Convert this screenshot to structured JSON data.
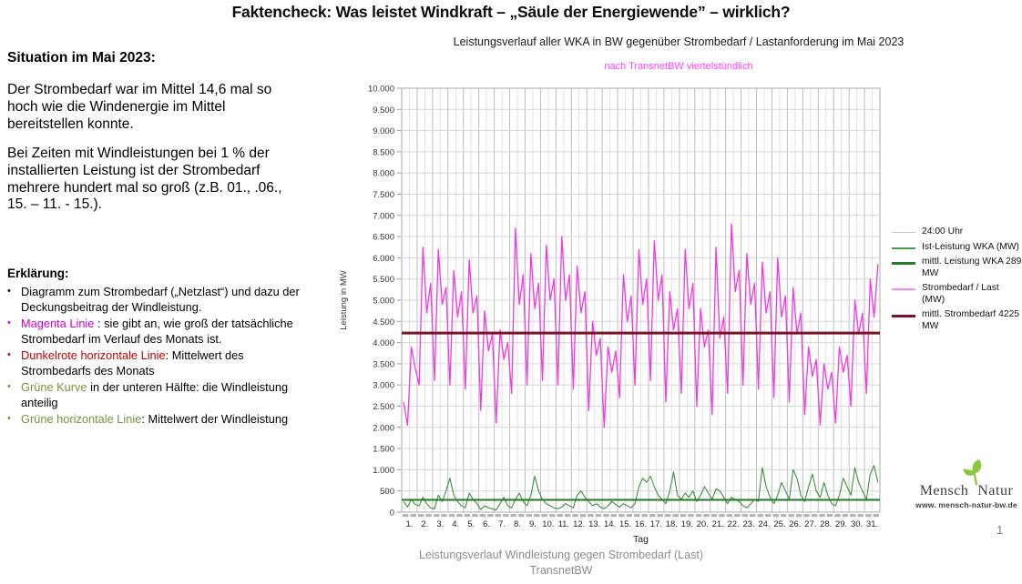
{
  "slide": {
    "title": "Faktencheck: Was leistet Windkraft – „Säule der Energiewende” –  wirklich?",
    "page_number": "1"
  },
  "left_panel": {
    "heading": "Situation im Mai 2023:",
    "paragraph1": "Der Strombedarf war im Mittel 14,6 mal so hoch wie die Windenergie im Mittel bereitstellen konnte.",
    "paragraph2": "Bei Zeiten mit Windleistungen bei 1 % der installierten Leistung ist der Strombedarf mehrere hundert mal so groß (z.B.  01., .06., 15. – 11. - 15.).",
    "explain_heading": "Erklärung:",
    "bullets": [
      {
        "lead": "",
        "lead_color": "#000000",
        "text": "Diagramm zum Strombedarf („Netzlast“) und dazu der Deckungsbeitrag der Windleistung."
      },
      {
        "lead": "Magenta Linie",
        "lead_color": "#cc00cc",
        "text": " : sie gibt an, wie groß der tatsächliche Strombedarf im Verlauf des Monats ist."
      },
      {
        "lead": "Dunkelrote horizontale Linie",
        "lead_color": "#c00000",
        "text": ": Mittelwert des Strombedarfs des Monats"
      },
      {
        "lead": "Grüne Kurve",
        "lead_color": "#77933c",
        "text": " in der unteren Hälfte: die Windleistung anteilig"
      },
      {
        "lead": "Grüne horizontale Linie",
        "lead_color": "#77933c",
        "text": ": Mittelwert der Windleistung"
      }
    ]
  },
  "chart": {
    "title": "Leistungsverlauf aller WKA in BW gegenüber  Strombedarf / Lastanforderung im Mai 2023",
    "subtitle": "nach TransnetBW viertelstündlich",
    "subtitle_color": "#ff42ff",
    "legend": [
      {
        "label": "24:00 Uhr",
        "color": "#c8c8c8",
        "weight": 1
      },
      {
        "label": "Ist-Leistung WKA (MW)",
        "color": "#4a9e4a",
        "weight": 2
      },
      {
        "label": "mittl. Leistung WKA 289 MW",
        "color": "#1e7d1e",
        "weight": 3
      },
      {
        "label": "Strombedarf / Last (MW)",
        "color": "#ff85f3",
        "weight": 2
      },
      {
        "label": "mittl. Strombedarf 4225 MW",
        "color": "#7a1226",
        "weight": 3
      }
    ]
  },
  "chart_data": {
    "type": "line",
    "title": "Leistungsverlauf aller WKA in BW gegenüber  Strombedarf / Lastanforderung im Mai 2023",
    "subtitle": "nach TransnetBW viertelstündlich",
    "xlabel": "Tag",
    "ylabel": "Leistung in MW",
    "ylim": [
      0,
      10000
    ],
    "ytick_step": 500,
    "ytick_labels": [
      "0",
      "500",
      "1.000",
      "1.500",
      "2.000",
      "2.500",
      "3.000",
      "3.500",
      "4.000",
      "4.500",
      "5.000",
      "5.500",
      "6.000",
      "6.500",
      "7.000",
      "7.500",
      "8.000",
      "8.500",
      "9.000",
      "9.500",
      "10.000"
    ],
    "days": 31,
    "samples_per_day": 4,
    "xticks": [
      "1.",
      "2.",
      "3.",
      "4.",
      "5.",
      "6.",
      "7.",
      "8.",
      "9.",
      "10.",
      "11.",
      "12.",
      "13.",
      "14.",
      "15.",
      "16.",
      "17.",
      "18.",
      "19.",
      "20.",
      "21.",
      "22.",
      "23.",
      "24.",
      "25.",
      "26.",
      "27.",
      "28.",
      "29.",
      "30.",
      "31."
    ],
    "grid": true,
    "legend_position": "right",
    "series": [
      {
        "name": "Strombedarf / Last (MW)",
        "color": "#ee3ae2",
        "width": 1.3,
        "values": [
          2600,
          2050,
          3900,
          3400,
          3000,
          6250,
          4700,
          5400,
          3100,
          6200,
          4900,
          5300,
          3000,
          5700,
          4600,
          5200,
          2900,
          5950,
          4700,
          5100,
          2400,
          4750,
          3800,
          4200,
          2100,
          4300,
          3600,
          4000,
          2800,
          6700,
          4900,
          5600,
          3000,
          6100,
          4800,
          5400,
          3100,
          6300,
          5000,
          5500,
          3000,
          6500,
          5000,
          5600,
          2900,
          5800,
          4700,
          5200,
          2400,
          4500,
          3700,
          4100,
          2000,
          3900,
          3300,
          3800,
          2700,
          5600,
          4500,
          5100,
          3000,
          6200,
          4900,
          5500,
          3100,
          6400,
          5000,
          5600,
          2600,
          5200,
          4300,
          4800,
          2800,
          6200,
          4800,
          5400,
          2500,
          4800,
          3900,
          4300,
          2300,
          6250,
          4100,
          4600,
          2800,
          6800,
          5200,
          5700,
          3000,
          6100,
          4900,
          5400,
          2900,
          5900,
          4700,
          5200,
          2700,
          6000,
          4600,
          5100,
          2600,
          5300,
          4200,
          4700,
          2300,
          3900,
          3200,
          3600,
          2050,
          3500,
          2900,
          3300,
          2100,
          3900,
          3300,
          3700,
          2500,
          5000,
          4200,
          4700,
          2800,
          5500,
          4600,
          5850
        ]
      },
      {
        "name": "Ist-Leistung WKA (MW)",
        "color": "#3f8f3f",
        "width": 1.1,
        "values": [
          250,
          120,
          300,
          180,
          150,
          350,
          200,
          100,
          80,
          400,
          250,
          500,
          800,
          400,
          250,
          150,
          100,
          450,
          300,
          200,
          60,
          150,
          100,
          80,
          50,
          200,
          350,
          150,
          100,
          300,
          450,
          250,
          150,
          400,
          850,
          500,
          300,
          200,
          150,
          100,
          80,
          120,
          200,
          150,
          100,
          400,
          500,
          350,
          250,
          150,
          200,
          120,
          80,
          150,
          250,
          180,
          120,
          200,
          150,
          100,
          200,
          600,
          800,
          700,
          850,
          600,
          400,
          300,
          200,
          500,
          950,
          400,
          300,
          450,
          350,
          500,
          250,
          400,
          600,
          450,
          300,
          550,
          500,
          350,
          200,
          350,
          300,
          250,
          150,
          100,
          200,
          300,
          250,
          1050,
          600,
          350,
          200,
          400,
          700,
          500,
          300,
          1000,
          800,
          400,
          250,
          600,
          900,
          500,
          350,
          700,
          400,
          200,
          150,
          400,
          800,
          600,
          400,
          1050,
          700,
          500,
          300,
          900,
          1100,
          700
        ]
      }
    ],
    "ref_lines": [
      {
        "name": "mittl. Strombedarf",
        "value": 4225,
        "color": "#7a1226",
        "width": 3
      },
      {
        "name": "mittl. Leistung WKA",
        "value": 289,
        "color": "#217a21",
        "width": 2
      }
    ],
    "vertical_day_lines_label": "24:00 Uhr"
  },
  "footer": {
    "caption_line1": "Leistungsverlauf Windleistung gegen Strombedarf (Last)",
    "caption_line2": "TransnetBW"
  },
  "logo": {
    "name_left": "Mensch",
    "name_right": "Natur",
    "url": "www. mensch-natur-bw.de",
    "leaf_color": "#8dc63f"
  }
}
